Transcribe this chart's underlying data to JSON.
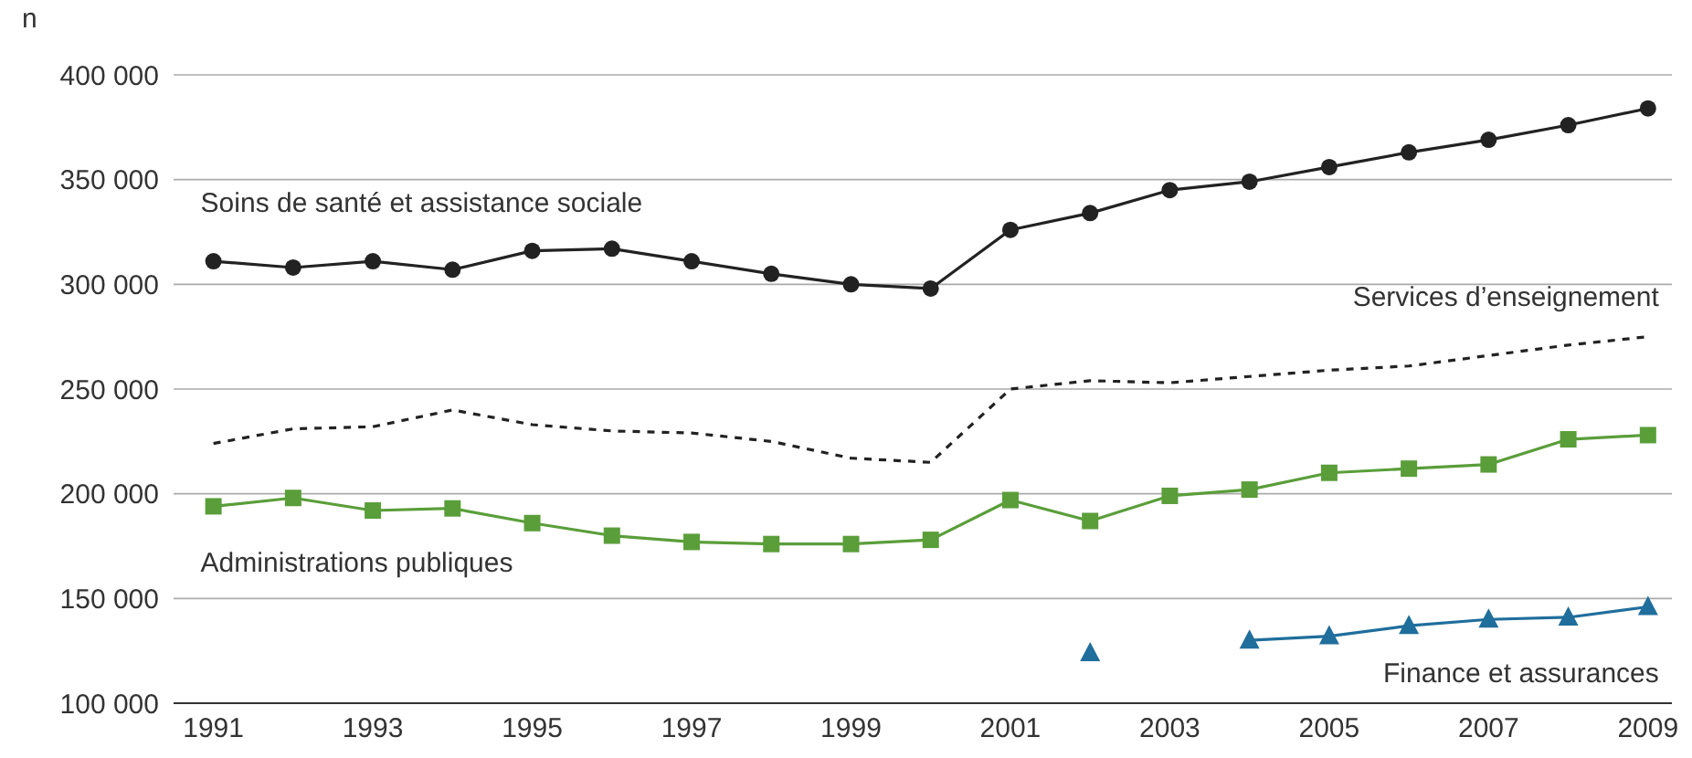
{
  "chart_data": {
    "type": "line",
    "ylabel": "n",
    "x": [
      1991,
      1992,
      1993,
      1994,
      1995,
      1996,
      1997,
      1998,
      1999,
      2000,
      2001,
      2002,
      2003,
      2004,
      2005,
      2006,
      2007,
      2008,
      2009
    ],
    "xlim": [
      1990.5,
      2009.3
    ],
    "xticks": [
      1991,
      1993,
      1995,
      1997,
      1999,
      2001,
      2003,
      2005,
      2007,
      2009
    ],
    "ylim": [
      100000,
      400000
    ],
    "yticks": [
      {
        "value": 100000,
        "label": "100 000"
      },
      {
        "value": 150000,
        "label": "150 000"
      },
      {
        "value": 200000,
        "label": "200 000"
      },
      {
        "value": 250000,
        "label": "250 000"
      },
      {
        "value": 300000,
        "label": "300 000"
      },
      {
        "value": 350000,
        "label": "350 000"
      },
      {
        "value": 400000,
        "label": "400 000"
      }
    ],
    "grid": "y",
    "legend": false,
    "series": [
      {
        "name": "Soins de santé et assistance sociale",
        "color": "#222222",
        "marker": "circle",
        "line_style": "solid",
        "values": [
          311000,
          308000,
          311000,
          307000,
          316000,
          317000,
          311000,
          305000,
          300000,
          298000,
          326000,
          334000,
          345000,
          349000,
          356000,
          363000,
          369000,
          376000,
          384000
        ]
      },
      {
        "name": "Services d’enseignement",
        "color": "#222222",
        "marker": "none",
        "line_style": "dashed",
        "values": [
          224000,
          231000,
          232000,
          240000,
          233000,
          230000,
          229000,
          225000,
          217000,
          215000,
          250000,
          254000,
          253000,
          256000,
          259000,
          261000,
          266000,
          271000,
          275000
        ]
      },
      {
        "name": "Administrations publiques",
        "color": "#5a9e3a",
        "marker": "square",
        "line_style": "solid",
        "values": [
          194000,
          198000,
          192000,
          193000,
          186000,
          180000,
          177000,
          176000,
          176000,
          178000,
          197000,
          187000,
          199000,
          202000,
          210000,
          212000,
          214000,
          226000,
          228000
        ]
      },
      {
        "name": "Finance et assurances",
        "color": "#1f6e9c",
        "marker": "triangle",
        "line_style": "solid",
        "values": [
          null,
          null,
          null,
          null,
          null,
          null,
          null,
          null,
          null,
          null,
          null,
          124000,
          null,
          130000,
          132000,
          137000,
          140000,
          141000,
          146000
        ]
      }
    ]
  }
}
